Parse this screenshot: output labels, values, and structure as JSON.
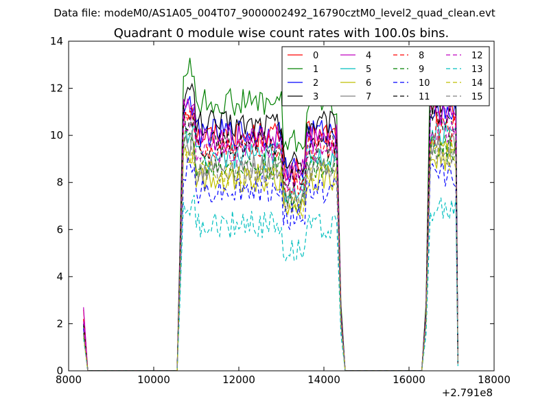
{
  "chart_data": {
    "type": "line",
    "suptitle": "Data file: modeM0/AS1A05_004T07_9000002492_16790cztM0_level2_quad_clean.evt",
    "title": "Quadrant 0 module wise count rates with 100.0s bins.",
    "xlabel": "",
    "ylabel": "",
    "x_offset_label": "+2.791e8",
    "xlim": [
      8000,
      18000
    ],
    "ylim": [
      0,
      14
    ],
    "xticks": [
      8000,
      10000,
      12000,
      14000,
      16000,
      18000
    ],
    "yticks": [
      0,
      2,
      4,
      6,
      8,
      10,
      12,
      14
    ],
    "grid": false,
    "legend_position": "top-right",
    "legend_columns": 4,
    "segments": [
      {
        "x": [
          8350,
          8450
        ],
        "type": "start"
      },
      {
        "x": [
          10550,
          14450
        ],
        "type": "main"
      },
      {
        "x": [
          16350,
          17150
        ],
        "type": "end"
      }
    ],
    "series": [
      {
        "name": "0",
        "color": "#ff0000",
        "style": "solid",
        "level": 10.0,
        "start": 2.6,
        "end": 0.4
      },
      {
        "name": "1",
        "color": "#008000",
        "style": "solid",
        "level": 11.4,
        "start": 2.0,
        "end": 0.3
      },
      {
        "name": "2",
        "color": "#0000ff",
        "style": "solid",
        "level": 10.1,
        "start": 2.0,
        "end": 0.3
      },
      {
        "name": "3",
        "color": "#000000",
        "style": "solid",
        "level": 10.5,
        "start": 1.6,
        "end": 0.3
      },
      {
        "name": "4",
        "color": "#bf00bf",
        "style": "solid",
        "level": 9.9,
        "start": 2.7,
        "end": 0.3
      },
      {
        "name": "5",
        "color": "#00bfbf",
        "style": "solid",
        "level": 9.1,
        "start": 1.9,
        "end": 0.3
      },
      {
        "name": "6",
        "color": "#bfbf00",
        "style": "solid",
        "level": 8.2,
        "start": 1.6,
        "end": 0.3
      },
      {
        "name": "7",
        "color": "#808080",
        "style": "solid",
        "level": 8.6,
        "start": 1.8,
        "end": 0.3
      },
      {
        "name": "8",
        "color": "#ff0000",
        "style": "dashed",
        "level": 9.4,
        "start": 2.2,
        "end": 0.3
      },
      {
        "name": "9",
        "color": "#008000",
        "style": "dashed",
        "level": 8.7,
        "start": 1.6,
        "end": 0.3
      },
      {
        "name": "10",
        "color": "#0000ff",
        "style": "dashed",
        "level": 7.7,
        "start": 1.8,
        "end": 0.3
      },
      {
        "name": "11",
        "color": "#000000",
        "style": "dashed",
        "level": 9.6,
        "start": 2.0,
        "end": 0.3
      },
      {
        "name": "12",
        "color": "#bf00bf",
        "style": "dashed",
        "level": 9.4,
        "start": 2.1,
        "end": 0.3
      },
      {
        "name": "13",
        "color": "#00bfbf",
        "style": "dashed",
        "level": 6.2,
        "start": 1.4,
        "end": 0.2
      },
      {
        "name": "14",
        "color": "#bfbf00",
        "style": "dashed",
        "level": 8.3,
        "start": 1.5,
        "end": 0.3
      },
      {
        "name": "15",
        "color": "#808080",
        "style": "dashed",
        "level": 8.5,
        "start": 1.6,
        "end": 0.3
      }
    ]
  }
}
